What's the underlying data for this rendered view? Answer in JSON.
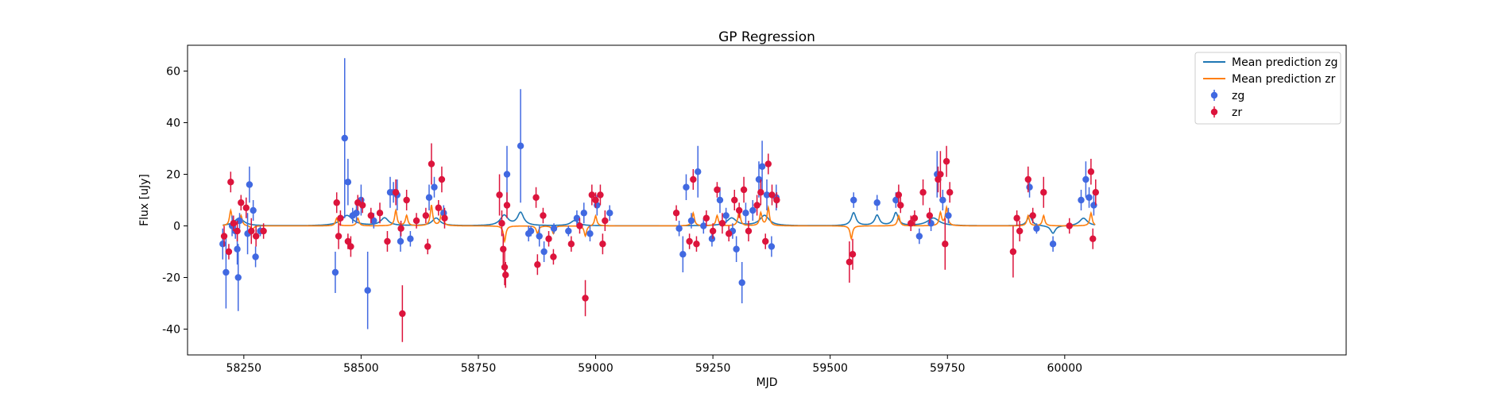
{
  "chart_data": {
    "type": "scatter",
    "title": "GP Regression",
    "xlabel": "MJD",
    "ylabel": "Flux [uJy]",
    "xlim": [
      58130,
      60600
    ],
    "ylim": [
      -50,
      70
    ],
    "xticks": [
      58250,
      58500,
      58750,
      59000,
      59250,
      59500,
      59750,
      60000
    ],
    "yticks": [
      -40,
      -20,
      0,
      20,
      40,
      60
    ],
    "grid": false,
    "legend_position": "top-right",
    "colors": {
      "zg_points": "#4169e1",
      "zr_points": "#dc143c",
      "mean_zg": "#1f77b4",
      "mean_zr": "#ff7f0e"
    },
    "legend": [
      {
        "label": "Mean prediction zg",
        "kind": "line",
        "color": "#1f77b4"
      },
      {
        "label": "Mean prediction zr",
        "kind": "line",
        "color": "#ff7f0e"
      },
      {
        "label": "zg",
        "kind": "errorbar",
        "color": "#4169e1"
      },
      {
        "label": "zr",
        "kind": "errorbar",
        "color": "#dc143c"
      }
    ],
    "series": [
      {
        "name": "zg",
        "kind": "errorbar",
        "points": [
          [
            58205,
            -7,
            6
          ],
          [
            58212,
            -18,
            14
          ],
          [
            58225,
            0,
            4
          ],
          [
            58232,
            -2,
            3
          ],
          [
            58236,
            -9,
            6
          ],
          [
            58238,
            -20,
            13
          ],
          [
            58241,
            2,
            3
          ],
          [
            58258,
            -3,
            8
          ],
          [
            58262,
            16,
            7
          ],
          [
            58270,
            6,
            4
          ],
          [
            58275,
            -12,
            4
          ],
          [
            58285,
            -2,
            2
          ],
          [
            58445,
            -18,
            8
          ],
          [
            58465,
            34,
            31
          ],
          [
            58472,
            17,
            9
          ],
          [
            58482,
            4,
            3
          ],
          [
            58490,
            5,
            4
          ],
          [
            58500,
            10,
            6
          ],
          [
            58514,
            -25,
            15
          ],
          [
            58527,
            2,
            3
          ],
          [
            58562,
            13,
            6
          ],
          [
            58569,
            13,
            4
          ],
          [
            58577,
            12,
            6
          ],
          [
            58584,
            -6,
            4
          ],
          [
            58605,
            -5,
            3
          ],
          [
            58645,
            11,
            5
          ],
          [
            58656,
            15,
            4
          ],
          [
            58676,
            5,
            3
          ],
          [
            58811,
            20,
            11
          ],
          [
            58840,
            31,
            22
          ],
          [
            58857,
            -3,
            3
          ],
          [
            58862,
            -2,
            2
          ],
          [
            58880,
            -4,
            4
          ],
          [
            58890,
            -10,
            4
          ],
          [
            58911,
            -1,
            2
          ],
          [
            58942,
            -2,
            2
          ],
          [
            58960,
            3,
            3
          ],
          [
            58975,
            5,
            4
          ],
          [
            58988,
            -3,
            3
          ],
          [
            59003,
            8,
            4
          ],
          [
            59030,
            5,
            3
          ],
          [
            59178,
            -1,
            3
          ],
          [
            59186,
            -11,
            7
          ],
          [
            59193,
            15,
            5
          ],
          [
            59204,
            2,
            3
          ],
          [
            59218,
            21,
            10
          ],
          [
            59230,
            0,
            3
          ],
          [
            59248,
            -5,
            3
          ],
          [
            59265,
            10,
            5
          ],
          [
            59278,
            4,
            3
          ],
          [
            59292,
            -2,
            3
          ],
          [
            59300,
            -9,
            5
          ],
          [
            59312,
            -22,
            8
          ],
          [
            59320,
            5,
            4
          ],
          [
            59335,
            6,
            4
          ],
          [
            59348,
            18,
            7
          ],
          [
            59355,
            23,
            10
          ],
          [
            59365,
            12,
            6
          ],
          [
            59375,
            -8,
            4
          ],
          [
            59385,
            11,
            5
          ],
          [
            59550,
            10,
            3
          ],
          [
            59600,
            9,
            3
          ],
          [
            59640,
            10,
            3
          ],
          [
            59690,
            -4,
            3
          ],
          [
            59715,
            1,
            3
          ],
          [
            59728,
            20,
            9
          ],
          [
            59740,
            10,
            4
          ],
          [
            59752,
            4,
            3
          ],
          [
            59925,
            15,
            4
          ],
          [
            59940,
            -1,
            2
          ],
          [
            59975,
            -7,
            3
          ],
          [
            60035,
            10,
            4
          ],
          [
            60045,
            18,
            7
          ],
          [
            60052,
            11,
            4
          ],
          [
            60062,
            8,
            4
          ]
        ]
      },
      {
        "name": "zr",
        "kind": "errorbar",
        "points": [
          [
            58208,
            -4,
            4
          ],
          [
            58218,
            -10,
            3
          ],
          [
            58222,
            17,
            4
          ],
          [
            58228,
            1,
            3
          ],
          [
            58236,
            -2,
            4
          ],
          [
            58244,
            9,
            3
          ],
          [
            58255,
            7,
            4
          ],
          [
            58266,
            -2,
            5
          ],
          [
            58276,
            -4,
            4
          ],
          [
            58292,
            -2,
            3
          ],
          [
            58448,
            9,
            4
          ],
          [
            58452,
            -4,
            5
          ],
          [
            58456,
            3,
            3
          ],
          [
            58472,
            -6,
            3
          ],
          [
            58478,
            -8,
            4
          ],
          [
            58493,
            9,
            3
          ],
          [
            58503,
            8,
            3
          ],
          [
            58521,
            4,
            3
          ],
          [
            58540,
            5,
            4
          ],
          [
            58556,
            -6,
            4
          ],
          [
            58574,
            13,
            5
          ],
          [
            58585,
            -1,
            3
          ],
          [
            58597,
            10,
            4
          ],
          [
            58618,
            2,
            3
          ],
          [
            58638,
            4,
            3
          ],
          [
            58642,
            -8,
            3
          ],
          [
            58650,
            24,
            8
          ],
          [
            58665,
            7,
            3
          ],
          [
            58672,
            18,
            5
          ],
          [
            58678,
            3,
            4
          ],
          [
            58588,
            -34,
            11
          ],
          [
            58795,
            12,
            8
          ],
          [
            58800,
            1,
            5
          ],
          [
            58803,
            -9,
            6
          ],
          [
            58806,
            -16,
            7
          ],
          [
            58808,
            -19,
            5
          ],
          [
            58811,
            8,
            5
          ],
          [
            58873,
            11,
            4
          ],
          [
            58876,
            -15,
            4
          ],
          [
            58888,
            4,
            3
          ],
          [
            58900,
            -5,
            3
          ],
          [
            58910,
            -12,
            3
          ],
          [
            58978,
            -28,
            7
          ],
          [
            58948,
            -7,
            3
          ],
          [
            58966,
            0,
            3
          ],
          [
            58992,
            12,
            4
          ],
          [
            59000,
            10,
            3
          ],
          [
            59010,
            12,
            4
          ],
          [
            59015,
            -7,
            4
          ],
          [
            59020,
            2,
            4
          ],
          [
            59172,
            5,
            3
          ],
          [
            59200,
            -6,
            3
          ],
          [
            59208,
            18,
            4
          ],
          [
            59215,
            -7,
            3
          ],
          [
            59236,
            3,
            3
          ],
          [
            59250,
            -2,
            3
          ],
          [
            59259,
            14,
            3
          ],
          [
            59270,
            1,
            4
          ],
          [
            59284,
            -3,
            3
          ],
          [
            59296,
            10,
            4
          ],
          [
            59306,
            6,
            3
          ],
          [
            59316,
            14,
            5
          ],
          [
            59326,
            -2,
            4
          ],
          [
            59344,
            8,
            4
          ],
          [
            59352,
            13,
            5
          ],
          [
            59362,
            -6,
            3
          ],
          [
            59368,
            24,
            4
          ],
          [
            59376,
            12,
            4
          ],
          [
            59386,
            10,
            3
          ],
          [
            59541,
            -14,
            8
          ],
          [
            59548,
            -11,
            6
          ],
          [
            59646,
            12,
            4
          ],
          [
            59650,
            8,
            3
          ],
          [
            59672,
            1,
            3
          ],
          [
            59680,
            3,
            3
          ],
          [
            59698,
            13,
            5
          ],
          [
            59712,
            4,
            3
          ],
          [
            59730,
            18,
            5
          ],
          [
            59735,
            20,
            9
          ],
          [
            59745,
            -7,
            10
          ],
          [
            59748,
            25,
            6
          ],
          [
            59755,
            13,
            4
          ],
          [
            59890,
            -10,
            10
          ],
          [
            59898,
            3,
            3
          ],
          [
            59904,
            -2,
            4
          ],
          [
            59922,
            18,
            5
          ],
          [
            59932,
            4,
            3
          ],
          [
            59955,
            13,
            6
          ],
          [
            60010,
            0,
            3
          ],
          [
            60056,
            21,
            5
          ],
          [
            60066,
            13,
            5
          ],
          [
            60060,
            -5,
            4
          ]
        ]
      }
    ],
    "mean_prediction_zg": {
      "name": "Mean prediction zg",
      "bumps": [
        [
          58240,
          3,
          12
        ],
        [
          58470,
          4,
          15
        ],
        [
          58550,
          3,
          10
        ],
        [
          58660,
          3,
          10
        ],
        [
          58805,
          4,
          10
        ],
        [
          58840,
          5,
          8
        ],
        [
          58955,
          2,
          10
        ],
        [
          59290,
          3,
          12
        ],
        [
          59360,
          4,
          12
        ],
        [
          59550,
          5,
          6
        ],
        [
          59600,
          4,
          6
        ],
        [
          59640,
          5,
          6
        ],
        [
          59720,
          3,
          15
        ],
        [
          59925,
          4,
          6
        ],
        [
          60040,
          3,
          10
        ],
        [
          59975,
          -3,
          6
        ]
      ]
    },
    "mean_prediction_zr": {
      "name": "Mean prediction zr",
      "bumps": [
        [
          58222,
          6,
          3
        ],
        [
          58244,
          4,
          3
        ],
        [
          58268,
          -2,
          3
        ],
        [
          58448,
          3,
          3
        ],
        [
          58493,
          3,
          3
        ],
        [
          58574,
          6,
          3
        ],
        [
          58597,
          4,
          3
        ],
        [
          58650,
          8,
          3
        ],
        [
          58672,
          6,
          3
        ],
        [
          58806,
          -6,
          3
        ],
        [
          58876,
          -3,
          3
        ],
        [
          58910,
          -3,
          3
        ],
        [
          58978,
          -4,
          3
        ],
        [
          59000,
          4,
          3
        ],
        [
          59208,
          5,
          3
        ],
        [
          59259,
          4,
          3
        ],
        [
          59306,
          6,
          3
        ],
        [
          59352,
          5,
          3
        ],
        [
          59368,
          7,
          3
        ],
        [
          59545,
          -5,
          3
        ],
        [
          59646,
          4,
          3
        ],
        [
          59735,
          5,
          3
        ],
        [
          59748,
          7,
          3
        ],
        [
          59922,
          4,
          3
        ],
        [
          59955,
          4,
          3
        ],
        [
          60056,
          5,
          3
        ]
      ]
    }
  }
}
